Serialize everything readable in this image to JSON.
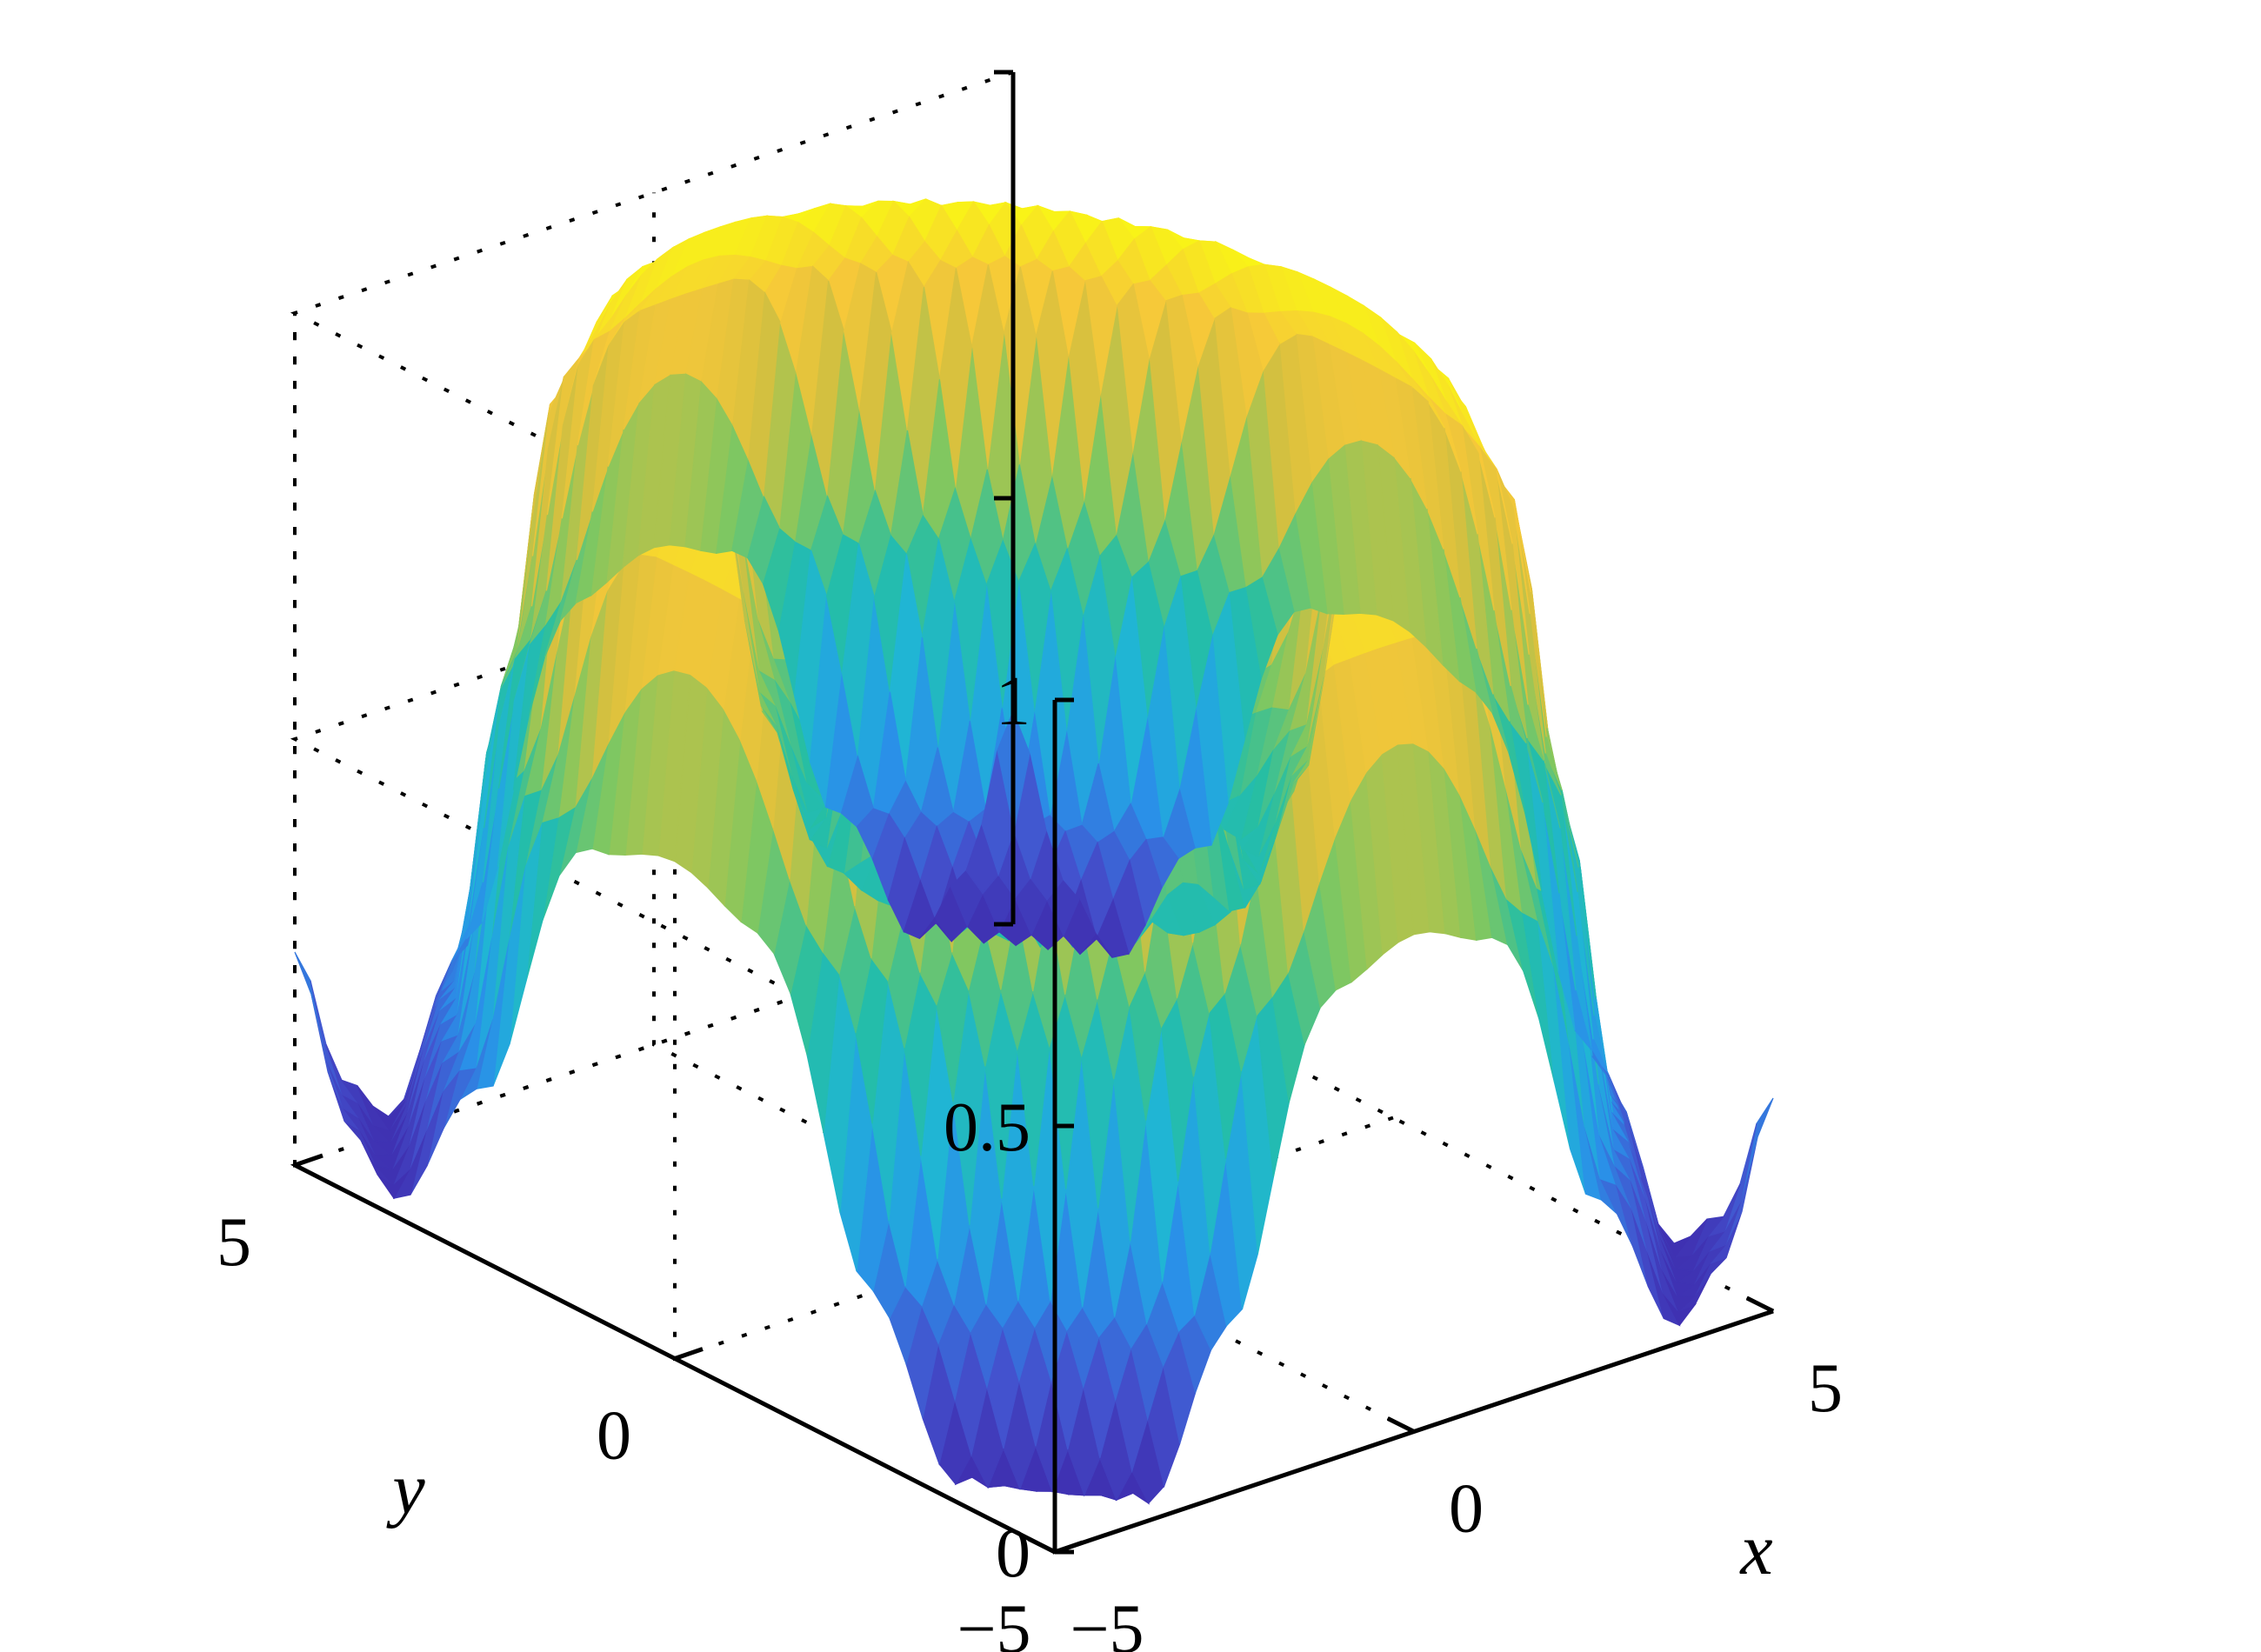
{
  "chart_data": {
    "type": "surface",
    "title": "",
    "xlabel": "x",
    "ylabel": "y",
    "zlabel": "",
    "xlim": [
      -5,
      5
    ],
    "ylim": [
      -5,
      5
    ],
    "zlim": [
      0,
      1
    ],
    "xticks": [
      {
        "value": -5,
        "label": "−5"
      },
      {
        "value": 0,
        "label": "0"
      },
      {
        "value": 5,
        "label": "5"
      }
    ],
    "yticks": [
      {
        "value": -5,
        "label": "−5"
      },
      {
        "value": 0,
        "label": "0"
      },
      {
        "value": 5,
        "label": "5"
      }
    ],
    "zticks": [
      {
        "value": 0,
        "label": "0"
      },
      {
        "value": 0.5,
        "label": "0.5"
      },
      {
        "value": 1,
        "label": "1"
      }
    ],
    "grid": true,
    "box": "dotted back panels",
    "colormap": "parula",
    "colormap_stops": [
      "#3e26a8",
      "#4352ce",
      "#2a90e8",
      "#1fb4d8",
      "#25bea5",
      "#82c75f",
      "#d6c03f",
      "#f6c839",
      "#f9f714"
    ],
    "surface": {
      "description_points": "radial profile z(r), r = sqrt(x^2 + y^2)",
      "r": [
        0,
        0.6,
        1.0,
        1.3,
        1.7,
        2.1,
        2.6,
        3.0,
        3.6,
        4.1,
        4.6,
        5.1,
        5.6,
        6.2,
        6.6,
        7.07
      ],
      "z": [
        0.86,
        0.9,
        1.0,
        0.95,
        0.65,
        0.45,
        0.6,
        0.85,
        1.0,
        1.0,
        0.9,
        0.55,
        0.2,
        0.02,
        0.08,
        0.25
      ]
    }
  }
}
